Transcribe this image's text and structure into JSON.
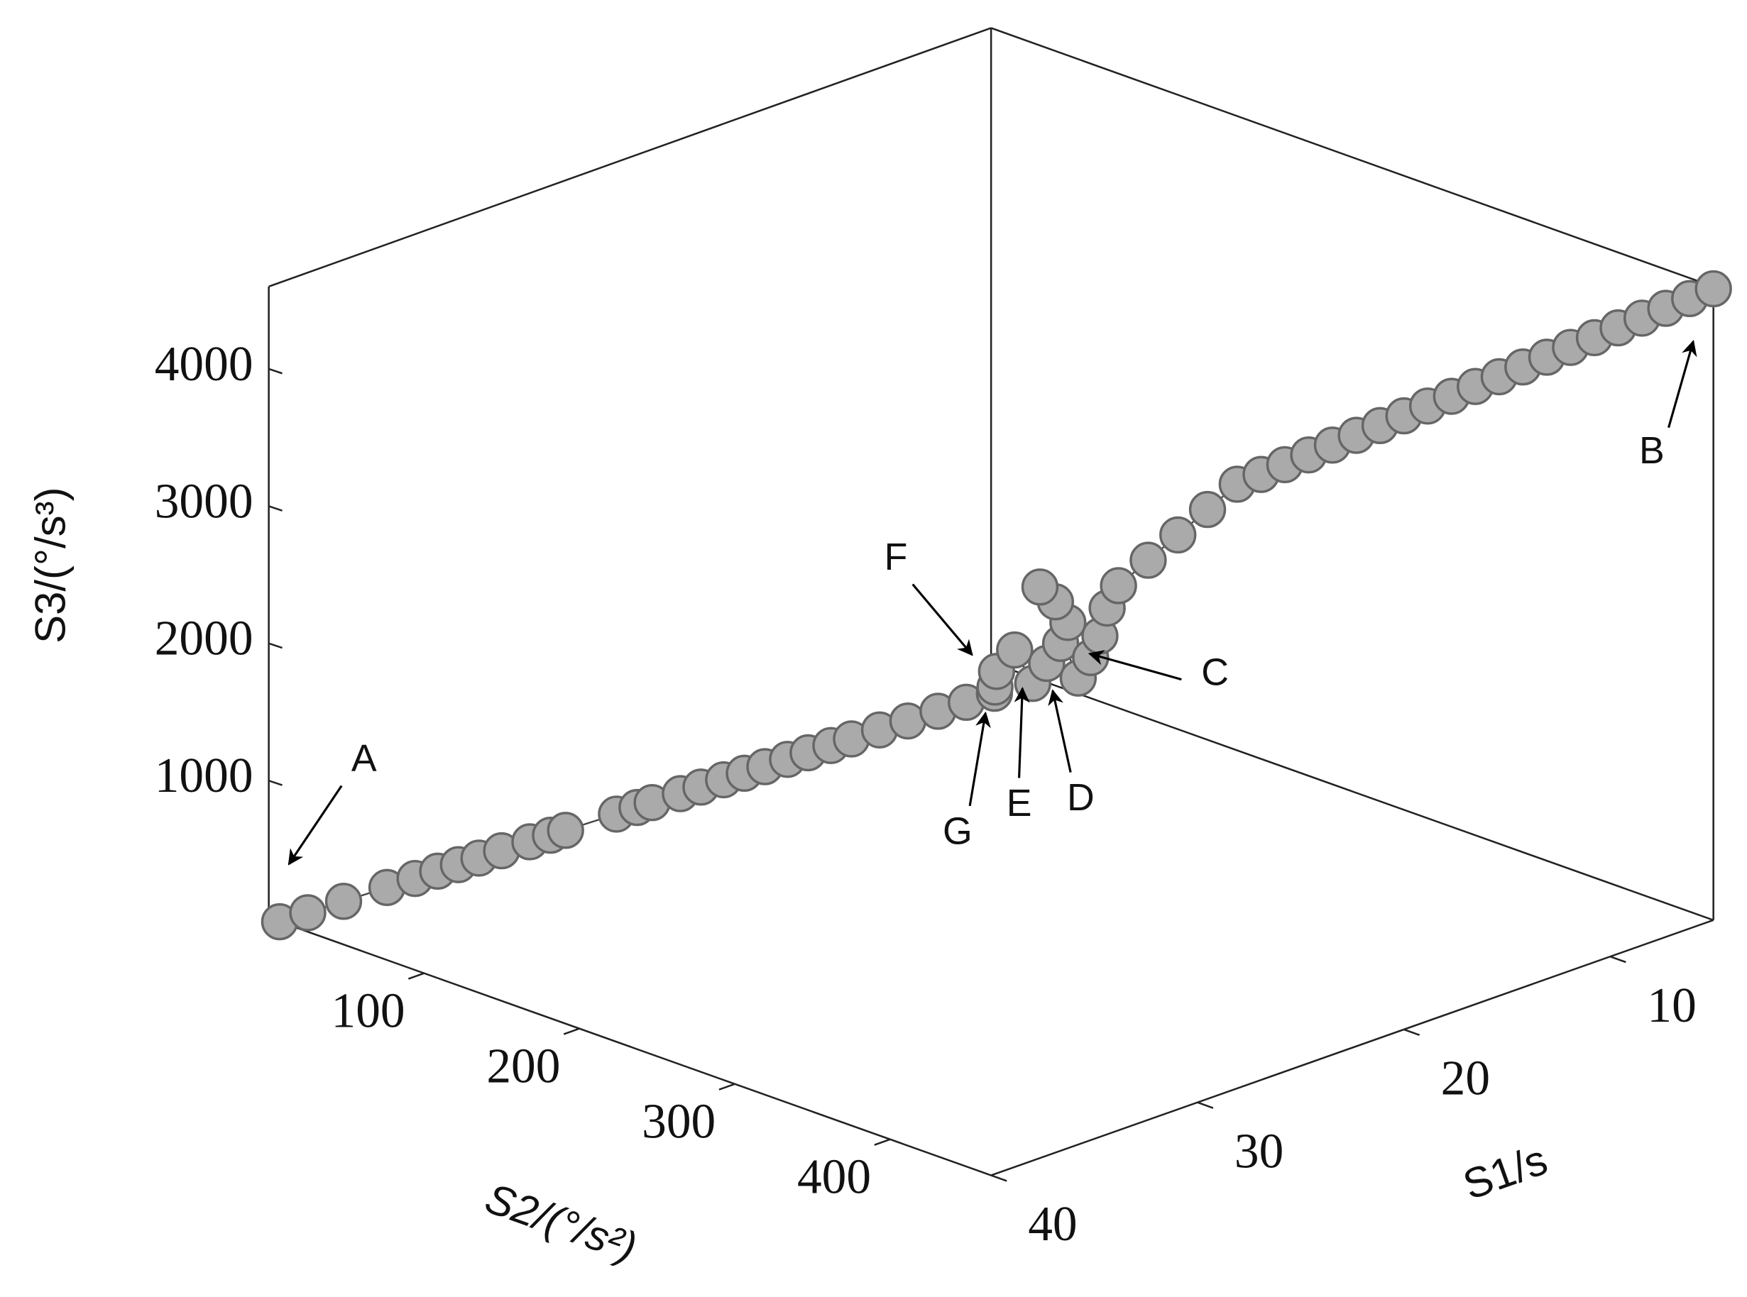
{
  "chart_data": {
    "type": "scatter3d",
    "xlabel": "S1/s",
    "ylabel": "S2/(°/s²)",
    "zlabel": "S3/(°/s³)",
    "color": "#aaaaaa",
    "edgecolor": "#666666",
    "xlim": [
      5,
      40
    ],
    "ylim": [
      0,
      465
    ],
    "zlim": [
      0,
      4600
    ],
    "xticks": [
      10,
      20,
      30,
      40
    ],
    "yticks": [
      100,
      200,
      300,
      400
    ],
    "zticks": [
      1000,
      2000,
      3000,
      4000
    ],
    "x": [
      40,
      39.3,
      38.4,
      37.3,
      36.6,
      36.0,
      35.5,
      35.0,
      34.4,
      33.7,
      33.2,
      32.8,
      31.5,
      31.0,
      30.6,
      29.9,
      29.4,
      28.8,
      28.3,
      27.8,
      27.2,
      26.7,
      26.1,
      25.6,
      24.9,
      24.2,
      23.4,
      22.7,
      22.0,
      22.5,
      22.8,
      22.3,
      21.8,
      21.5,
      21.2,
      21.0,
      21.3,
      21.6,
      20.8,
      20.5,
      20.2,
      20.0,
      19.6,
      18.2,
      16.8,
      15.4,
      14.0,
      13.55,
      13.1,
      12.65,
      12.2,
      11.75,
      11.3,
      10.85,
      10.4,
      9.95,
      9.5,
      9.05,
      8.6,
      8.15,
      7.7,
      7.25,
      6.8,
      6.35,
      5.9,
      5.45,
      5.0
    ],
    "y": [
      7,
      15.8,
      26.9,
      40.2,
      49.0,
      55.6,
      62.3,
      68.9,
      75.5,
      84.4,
      91.0,
      95.4,
      110.9,
      117.5,
      121.9,
      130.8,
      137.4,
      144.0,
      150.7,
      157.3,
      163.9,
      170.5,
      177.2,
      183.8,
      192.6,
      201.5,
      210.3,
      219.2,
      228.0,
      235,
      240,
      245,
      250,
      255,
      260,
      262,
      258,
      252,
      266,
      270,
      272,
      274,
      276,
      276.5,
      277,
      277.5,
      278,
      287.4,
      296.7,
      306.1,
      315.4,
      324.8,
      334.1,
      343.5,
      352.8,
      362.2,
      371.5,
      380.9,
      390.2,
      399.6,
      408.9,
      418.3,
      427.6,
      437,
      446.3,
      455.7,
      465
    ],
    "z": [
      0,
      64,
      144,
      240,
      304,
      352,
      400,
      448,
      496,
      560,
      608,
      640,
      752,
      800,
      832,
      896,
      944,
      992,
      1040,
      1088,
      1136,
      1184,
      1232,
      1280,
      1344,
      1408,
      1472,
      1536,
      1600,
      1700,
      1850,
      2000,
      1750,
      1900,
      2050,
      2200,
      2350,
      2450,
      1800,
      1950,
      2100,
      2300,
      2450,
      2563,
      2675,
      2788,
      2900,
      2985,
      3070,
      3155,
      3240,
      3325,
      3410,
      3495,
      3580,
      3665,
      3750,
      3835,
      3920,
      4005,
      4090,
      4175,
      4260,
      4345,
      4430,
      4515,
      4600
    ],
    "annotations": [
      "A",
      "B",
      "C",
      "D",
      "E",
      "F",
      "G"
    ]
  }
}
